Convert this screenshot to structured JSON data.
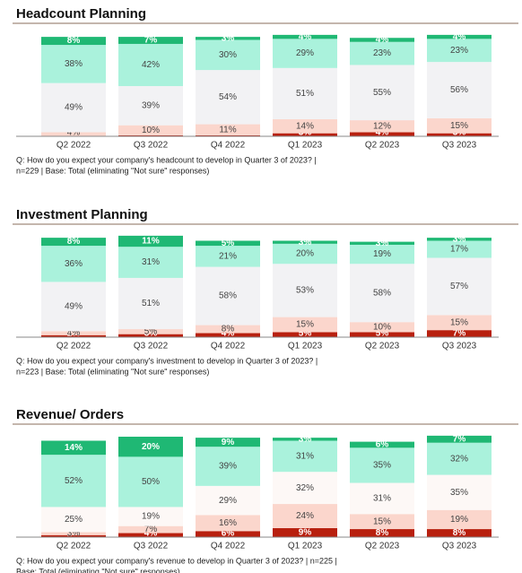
{
  "chart_data": [
    {
      "type": "stacked-bar",
      "title": "Headcount Planning",
      "categories": [
        "Q2 2022",
        "Q3 2022",
        "Q4 2022",
        "Q1 2023",
        "Q2 2023",
        "Q3 2023"
      ],
      "ylim": [
        0,
        100
      ],
      "series": [
        {
          "color": "#b8200f",
          "values": [
            null,
            1,
            1,
            3,
            4,
            3
          ],
          "value_labels": [
            null,
            "1%",
            "1%",
            "3%",
            "4%",
            "3%"
          ]
        },
        {
          "color": "#fbd6cc",
          "values": [
            4,
            10,
            11,
            14,
            12,
            15
          ],
          "value_labels": [
            "4%",
            "10%",
            "11%",
            "14%",
            "12%",
            "15%"
          ]
        },
        {
          "color": "#f2f2f4",
          "values": [
            49,
            39,
            54,
            51,
            55,
            56
          ],
          "value_labels": [
            "49%",
            "39%",
            "54%",
            "51%",
            "55%",
            "56%"
          ]
        },
        {
          "color": "#aaf2dc",
          "values": [
            38,
            42,
            30,
            29,
            23,
            23
          ],
          "value_labels": [
            "38%",
            "42%",
            "30%",
            "29%",
            "23%",
            "23%"
          ]
        },
        {
          "color": "#1fb874",
          "values": [
            8,
            7,
            3,
            4,
            4,
            4
          ],
          "value_labels": [
            "8%",
            "7%",
            "3%",
            "4%",
            "4%",
            "4%"
          ]
        }
      ],
      "notes": [
        "Q: How do you expect your company's headcount to develop in Quarter 3 of 2023? |",
        "n=229 | Base: Total (eliminating \"Not sure\" responses)"
      ]
    },
    {
      "type": "stacked-bar",
      "title": "Investment Planning",
      "categories": [
        "Q2 2022",
        "Q3 2022",
        "Q4 2022",
        "Q1 2023",
        "Q2 2023",
        "Q3 2023"
      ],
      "ylim": [
        0,
        100
      ],
      "series": [
        {
          "color": "#b8200f",
          "values": [
            2,
            3,
            4,
            5,
            5,
            7
          ],
          "value_labels": [
            "2%",
            "3%",
            "4%",
            "5%",
            "5%",
            "7%"
          ]
        },
        {
          "color": "#fbd6cc",
          "values": [
            4,
            5,
            8,
            15,
            10,
            15
          ],
          "value_labels": [
            "4%",
            "5%",
            "8%",
            "15%",
            "10%",
            "15%"
          ]
        },
        {
          "color": "#f2f2f4",
          "values": [
            49,
            51,
            58,
            53,
            58,
            57
          ],
          "value_labels": [
            "49%",
            "51%",
            "58%",
            "53%",
            "58%",
            "57%"
          ]
        },
        {
          "color": "#aaf2dc",
          "values": [
            36,
            31,
            21,
            20,
            19,
            17
          ],
          "value_labels": [
            "36%",
            "31%",
            "21%",
            "20%",
            "19%",
            "17%"
          ]
        },
        {
          "color": "#1fb874",
          "values": [
            8,
            11,
            5,
            3,
            3,
            3
          ],
          "value_labels": [
            "8%",
            "11%",
            "5%",
            "3%",
            "3%",
            "3%"
          ]
        }
      ],
      "notes": [
        "Q: How do you expect your company's investment to develop in Quarter 3 of 2023? |",
        "n=223 | Base: Total (eliminating \"Not sure\" responses)"
      ]
    },
    {
      "type": "stacked-bar",
      "title": "Revenue/ Orders",
      "categories": [
        "Q2 2022",
        "Q3 2022",
        "Q4 2022",
        "Q1 2023",
        "Q2 2023",
        "Q3 2023"
      ],
      "ylim": [
        0,
        100
      ],
      "series": [
        {
          "color": "#b8200f",
          "values": [
            2,
            4,
            6,
            9,
            8,
            8
          ],
          "value_labels": [
            "2%",
            "4%",
            "6%",
            "9%",
            "8%",
            "8%"
          ]
        },
        {
          "color": "#fbd6cc",
          "values": [
            3,
            7,
            16,
            24,
            15,
            19
          ],
          "value_labels": [
            "3%",
            "7%",
            "16%",
            "24%",
            "15%",
            "19%"
          ]
        },
        {
          "color": "#fdf8f6",
          "values": [
            25,
            19,
            29,
            32,
            31,
            35
          ],
          "value_labels": [
            "25%",
            "19%",
            "29%",
            "32%",
            "31%",
            "35%"
          ]
        },
        {
          "color": "#aaf2dc",
          "values": [
            52,
            50,
            39,
            31,
            35,
            32
          ],
          "value_labels": [
            "52%",
            "50%",
            "39%",
            "31%",
            "35%",
            "32%"
          ]
        },
        {
          "color": "#1fb874",
          "values": [
            14,
            20,
            9,
            3,
            6,
            7
          ],
          "value_labels": [
            "14%",
            "20%",
            "9%",
            "3%",
            "6%",
            "7%"
          ]
        }
      ],
      "notes": [
        "Q: How do you expect your company's revenue to develop in Quarter 3 of 2023? | n=225 |",
        "Base: Total (eliminating \"Not sure\" responses)"
      ]
    }
  ]
}
